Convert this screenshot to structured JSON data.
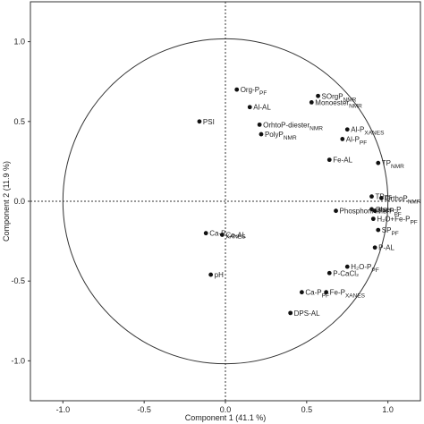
{
  "chart_data": {
    "type": "scatter",
    "title": "",
    "xlabel": "Component 1 (41.1 %)",
    "ylabel": "Component 2 (11.9 %)",
    "xlim": [
      -1.2,
      1.2
    ],
    "ylim": [
      -1.25,
      1.25
    ],
    "xticks": [
      -1.0,
      -0.5,
      0.0,
      0.5,
      1.0
    ],
    "xtick_labels": [
      "-1.0",
      "-0.5",
      "0.0",
      "0.5",
      "1.0"
    ],
    "yticks": [
      1.0,
      0.5,
      0.0,
      -0.5,
      -1.0
    ],
    "ytick_labels": [
      "1.0",
      "0.5",
      "0.0",
      "-0.5",
      "-1.0"
    ],
    "grid": false,
    "reference_lines": {
      "x0": true,
      "y0": true,
      "style": "dotted"
    },
    "unit_circle": true,
    "points": [
      {
        "label": "Org-P",
        "sub": "PF",
        "x": 0.07,
        "y": 0.7
      },
      {
        "label": "SOrgP",
        "sub": "NMR",
        "x": 0.57,
        "y": 0.66
      },
      {
        "label": "Al-AL",
        "sub": "",
        "x": 0.15,
        "y": 0.59
      },
      {
        "label": "Monoester",
        "sub": "NMR",
        "x": 0.53,
        "y": 0.62
      },
      {
        "label": "PSI",
        "sub": "",
        "x": -0.16,
        "y": 0.5
      },
      {
        "label": "OrhtoP-diester",
        "sub": "NMR",
        "x": 0.21,
        "y": 0.48
      },
      {
        "label": "PolyP",
        "sub": "NMR",
        "x": 0.22,
        "y": 0.42
      },
      {
        "label": "Al-P",
        "sub": "XANES",
        "x": 0.75,
        "y": 0.45
      },
      {
        "label": "Al-P",
        "sub": "PF",
        "x": 0.72,
        "y": 0.39
      },
      {
        "label": "Fe-AL",
        "sub": "",
        "x": 0.64,
        "y": 0.26
      },
      {
        "label": "TP",
        "sub": "NMR",
        "x": 0.94,
        "y": 0.24
      },
      {
        "label": "TPps",
        "sub": "",
        "x": 0.9,
        "y": 0.03
      },
      {
        "label": "OrthoP",
        "sub": "NMR",
        "x": 0.96,
        "y": 0.02
      },
      {
        "label": "Olsen-P",
        "sub": "",
        "x": 0.9,
        "y": -0.05
      },
      {
        "label": "PhosphonNMR",
        "sub": "",
        "x": 0.68,
        "y": -0.06
      },
      {
        "label": "Fe-P",
        "sub": "PF",
        "x": 0.92,
        "y": -0.06
      },
      {
        "label": "H₂O+Fe-P",
        "sub": "PF",
        "x": 0.91,
        "y": -0.11
      },
      {
        "label": "SP",
        "sub": "PF",
        "x": 0.94,
        "y": -0.18
      },
      {
        "label": "P-AL",
        "sub": "",
        "x": 0.92,
        "y": -0.29
      },
      {
        "label": "Ca-P",
        "sub": "XANES",
        "x": -0.12,
        "y": -0.2
      },
      {
        "label": "Ca-AL",
        "sub": "",
        "x": -0.02,
        "y": -0.21
      },
      {
        "label": "H₂O-P",
        "sub": "PF",
        "x": 0.75,
        "y": -0.41
      },
      {
        "label": "P-CaCl₂",
        "sub": "",
        "x": 0.64,
        "y": -0.45
      },
      {
        "label": "pH",
        "sub": "",
        "x": -0.09,
        "y": -0.46
      },
      {
        "label": "Ca-P",
        "sub": "PF",
        "x": 0.47,
        "y": -0.57
      },
      {
        "label": "Fe-P",
        "sub": "XANES",
        "x": 0.62,
        "y": -0.57
      },
      {
        "label": "DPS-AL",
        "sub": "",
        "x": 0.4,
        "y": -0.7
      }
    ]
  }
}
